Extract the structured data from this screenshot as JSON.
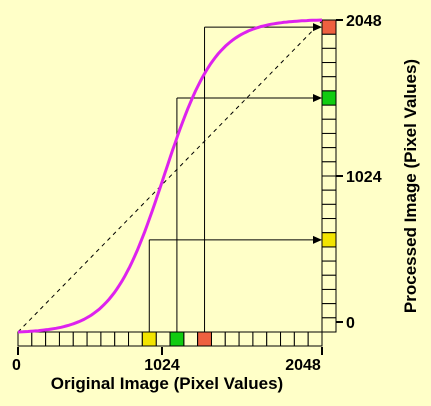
{
  "x_axis": {
    "label": "Original Image (Pixel Values)",
    "ticks": [
      "0",
      "1024",
      "2048"
    ],
    "min": 0,
    "max": 2048
  },
  "y_axis": {
    "label": "Processed Image (Pixel Values)",
    "ticks": [
      "0",
      "1024",
      "2048"
    ],
    "min": 0,
    "max": 2048
  },
  "colors": {
    "background": "#ffffc8",
    "curve": "#dd22ee",
    "yellow": "#f2e400",
    "green": "#11cc11",
    "red": "#ee6040"
  },
  "mappings": [
    {
      "name": "yellow",
      "original": 880,
      "processed": 560
    },
    {
      "name": "green",
      "original": 1024,
      "processed": 1550
    },
    {
      "name": "red",
      "original": 1230,
      "processed": 1980
    }
  ]
}
